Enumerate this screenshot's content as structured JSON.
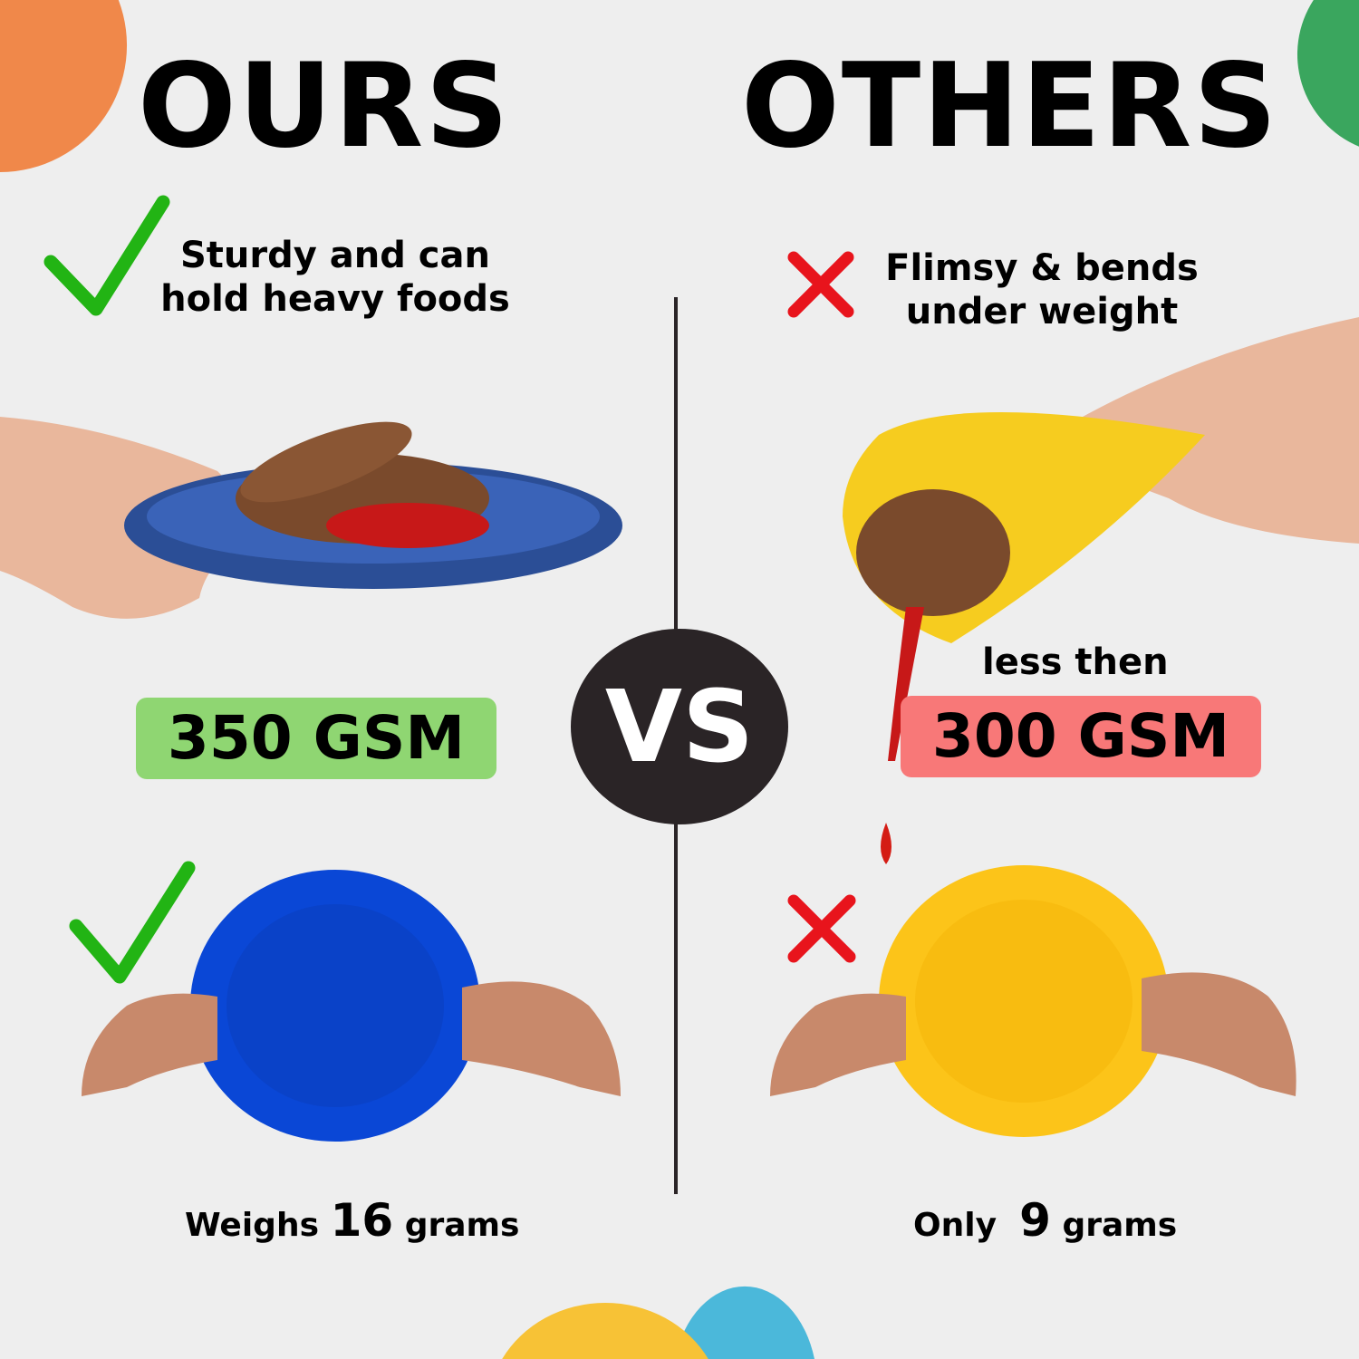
{
  "ours": {
    "title": "OURS",
    "claim_line1": "Sturdy and can",
    "claim_line2": "hold heavy foods",
    "gsm_label": "350 GSM",
    "weight_prefix": "Weighs",
    "weight_value": "16",
    "weight_unit": "grams",
    "badge_color": "#8fd672",
    "plate_color": "#0a47d6",
    "mark_icon": "check-icon"
  },
  "others": {
    "title": "OTHERS",
    "claim_line1": "Flimsy & bends",
    "claim_line2": "under weight",
    "gsm_prefix": "less then",
    "gsm_label": "300 GSM",
    "weight_prefix": "Only",
    "weight_value": "9",
    "weight_unit": "grams",
    "badge_color": "#f87878",
    "plate_color": "#fcc419",
    "mark_icon": "cross-icon"
  },
  "vs_label": "VS",
  "colors": {
    "check": "#22b414",
    "cross": "#e8141c",
    "orange_deco": "#f0884a",
    "green_deco": "#3aa65e",
    "yellow_deco": "#f7c236",
    "blue_deco": "#4bb8da"
  }
}
